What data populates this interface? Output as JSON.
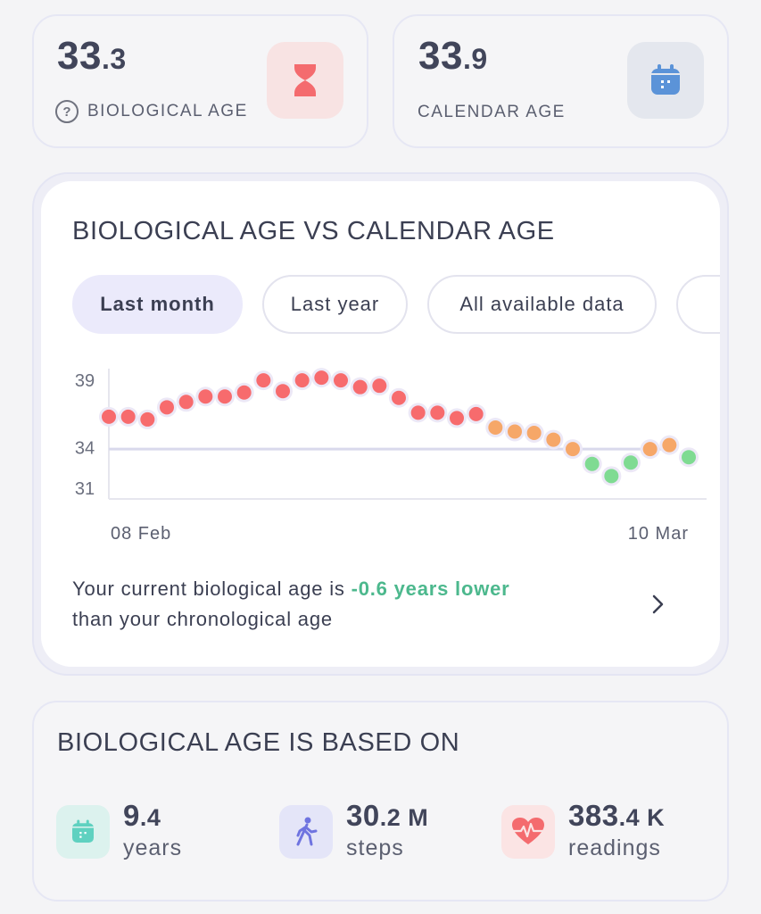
{
  "biological": {
    "int": "33",
    "dec": ".3",
    "label": "BIOLOGICAL AGE",
    "icon": "hourglass-icon"
  },
  "calendar": {
    "int": "33",
    "dec": ".9",
    "label": "CALENDAR AGE",
    "icon": "calendar-icon"
  },
  "chart_section": {
    "title": "BIOLOGICAL AGE VS CALENDAR AGE",
    "tabs": [
      "Last month",
      "Last year",
      "All available data"
    ],
    "active_tab": "Last month",
    "summary_pre": "Your current biological age is ",
    "summary_highlight": "-0.6 years lower",
    "summary_post": "than your chronological age"
  },
  "chart_data": {
    "type": "scatter",
    "x_labels": [
      "08 Feb",
      "10 Mar"
    ],
    "y_ticks": [
      39,
      34,
      31
    ],
    "ylim": [
      30.2,
      40.4
    ],
    "reference_line": 33.9,
    "values": [
      36.3,
      36.3,
      36.1,
      37.0,
      37.4,
      37.8,
      37.8,
      38.1,
      39.0,
      38.2,
      39.0,
      39.2,
      39.0,
      38.5,
      38.6,
      37.7,
      36.6,
      36.6,
      36.2,
      36.5,
      35.5,
      35.2,
      35.1,
      34.6,
      33.9,
      32.8,
      31.9,
      32.9,
      33.9,
      34.2,
      33.3
    ],
    "colors": {
      "above": "#f76b6d",
      "near": "#f6a768",
      "below": "#7fdb92"
    }
  },
  "based_on": {
    "title": "BIOLOGICAL AGE IS BASED ON",
    "items": [
      {
        "int": "9",
        "dec": ".4",
        "unit": "",
        "label": "years",
        "icon": "calendar-icon"
      },
      {
        "int": "30",
        "dec": ".2",
        "unit": " M",
        "label": "steps",
        "icon": "walking-person-icon"
      },
      {
        "int": "383",
        "dec": ".4",
        "unit": " K",
        "label": "readings",
        "icon": "heart-rate-icon"
      }
    ]
  }
}
